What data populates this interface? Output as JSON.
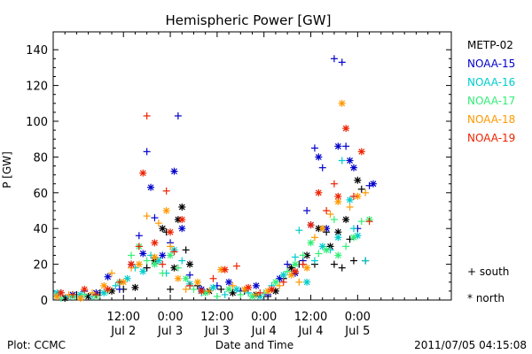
{
  "chart_data": {
    "type": "scatter",
    "title": "Hemispheric Power [GW]",
    "ylabel": "P [GW]",
    "xlabel": "Date and Time",
    "ylim": [
      0,
      150
    ],
    "yticks": [
      0,
      20,
      40,
      60,
      80,
      100,
      120,
      140
    ],
    "x_unit": "hours since 2011/07/01 18:00",
    "xlim": [
      0,
      102
    ],
    "xticks": [
      {
        "x": 18,
        "time": "12:00",
        "date": "Jul 2"
      },
      {
        "x": 30,
        "time": "0:00",
        "date": "Jul 3"
      },
      {
        "x": 42,
        "time": "12:00",
        "date": "Jul 3"
      },
      {
        "x": 54,
        "time": "0:00",
        "date": "Jul 4"
      },
      {
        "x": 66,
        "time": "12:00",
        "date": "Jul 4"
      },
      {
        "x": 78,
        "time": "0:00",
        "date": "Jul 5"
      }
    ],
    "grid": false,
    "legend_position": "right",
    "series": [
      {
        "name": "METP-02",
        "color": "#000000",
        "points": [
          [
            1,
            2,
            "+"
          ],
          [
            3,
            1,
            "*"
          ],
          [
            6,
            3,
            "+"
          ],
          [
            9,
            2,
            "*"
          ],
          [
            12,
            4,
            "+"
          ],
          [
            15,
            5,
            "*"
          ],
          [
            18,
            6,
            "+"
          ],
          [
            21,
            7,
            "*"
          ],
          [
            24,
            18,
            "+"
          ],
          [
            26,
            22,
            "*"
          ],
          [
            28,
            40,
            "*"
          ],
          [
            29,
            38,
            "+"
          ],
          [
            30,
            6,
            "+"
          ],
          [
            31,
            18,
            "*"
          ],
          [
            32,
            45,
            "*"
          ],
          [
            33,
            52,
            "*"
          ],
          [
            34,
            28,
            "+"
          ],
          [
            35,
            20,
            "*"
          ],
          [
            37,
            8,
            "+"
          ],
          [
            40,
            5,
            "*"
          ],
          [
            43,
            6,
            "+"
          ],
          [
            46,
            4,
            "*"
          ],
          [
            49,
            5,
            "+"
          ],
          [
            52,
            3,
            "*"
          ],
          [
            55,
            2,
            "+"
          ],
          [
            57,
            5,
            "*"
          ],
          [
            59,
            12,
            "+"
          ],
          [
            61,
            18,
            "*"
          ],
          [
            63,
            20,
            "+"
          ],
          [
            65,
            25,
            "*"
          ],
          [
            67,
            20,
            "+"
          ],
          [
            68,
            40,
            "*"
          ],
          [
            70,
            38,
            "+"
          ],
          [
            71,
            30,
            "*"
          ],
          [
            72,
            20,
            "+"
          ],
          [
            73,
            38,
            "*"
          ],
          [
            74,
            18,
            "+"
          ],
          [
            75,
            45,
            "*"
          ],
          [
            76,
            34,
            "+"
          ],
          [
            77,
            22,
            "+"
          ],
          [
            78,
            67,
            "*"
          ],
          [
            79,
            62,
            "+"
          ],
          [
            80,
            22,
            "+"
          ]
        ]
      },
      {
        "name": "NOAA-15",
        "color": "#0000cc",
        "points": [
          [
            2,
            4,
            "+"
          ],
          [
            5,
            3,
            "*"
          ],
          [
            8,
            5,
            "+"
          ],
          [
            11,
            4,
            "*"
          ],
          [
            14,
            13,
            "*"
          ],
          [
            17,
            6,
            "+"
          ],
          [
            20,
            20,
            "*"
          ],
          [
            22,
            36,
            "+"
          ],
          [
            23,
            26,
            "*"
          ],
          [
            24,
            83,
            "+"
          ],
          [
            25,
            63,
            "*"
          ],
          [
            26,
            46,
            "+"
          ],
          [
            28,
            25,
            "*"
          ],
          [
            30,
            32,
            "+"
          ],
          [
            31,
            72,
            "*"
          ],
          [
            32,
            103,
            "+"
          ],
          [
            33,
            40,
            "*"
          ],
          [
            35,
            14,
            "+"
          ],
          [
            38,
            6,
            "*"
          ],
          [
            42,
            8,
            "+"
          ],
          [
            45,
            10,
            "*"
          ],
          [
            48,
            5,
            "+"
          ],
          [
            52,
            8,
            "*"
          ],
          [
            55,
            3,
            "+"
          ],
          [
            58,
            12,
            "*"
          ],
          [
            60,
            20,
            "+"
          ],
          [
            62,
            15,
            "*"
          ],
          [
            64,
            22,
            "+"
          ],
          [
            65,
            50,
            "+"
          ],
          [
            66,
            42,
            "*"
          ],
          [
            67,
            85,
            "+"
          ],
          [
            68,
            80,
            "*"
          ],
          [
            69,
            74,
            "+"
          ],
          [
            70,
            40,
            "*"
          ],
          [
            72,
            135,
            "+"
          ],
          [
            73,
            86,
            "*"
          ],
          [
            74,
            133,
            "+"
          ],
          [
            75,
            86,
            "+"
          ],
          [
            76,
            78,
            "*"
          ],
          [
            77,
            74,
            "*"
          ],
          [
            78,
            40,
            "+"
          ],
          [
            81,
            64,
            "+"
          ],
          [
            82,
            65,
            "*"
          ]
        ]
      },
      {
        "name": "NOAA-16",
        "color": "#00cccc",
        "points": [
          [
            1,
            4,
            "*"
          ],
          [
            4,
            2,
            "+"
          ],
          [
            7,
            3,
            "*"
          ],
          [
            10,
            2,
            "+"
          ],
          [
            13,
            4,
            "*"
          ],
          [
            16,
            8,
            "+"
          ],
          [
            19,
            12,
            "*"
          ],
          [
            21,
            18,
            "+"
          ],
          [
            23,
            16,
            "*"
          ],
          [
            25,
            25,
            "+"
          ],
          [
            27,
            22,
            "*"
          ],
          [
            29,
            15,
            "+"
          ],
          [
            31,
            28,
            "*"
          ],
          [
            33,
            22,
            "+"
          ],
          [
            35,
            9,
            "*"
          ],
          [
            38,
            4,
            "+"
          ],
          [
            41,
            7,
            "*"
          ],
          [
            44,
            3,
            "+"
          ],
          [
            47,
            6,
            "*"
          ],
          [
            50,
            4,
            "+"
          ],
          [
            53,
            2,
            "*"
          ],
          [
            56,
            8,
            "+"
          ],
          [
            59,
            14,
            "*"
          ],
          [
            62,
            24,
            "+"
          ],
          [
            63,
            39,
            "+"
          ],
          [
            65,
            10,
            "*"
          ],
          [
            67,
            22,
            "+"
          ],
          [
            69,
            30,
            "*"
          ],
          [
            71,
            28,
            "+"
          ],
          [
            73,
            35,
            "*"
          ],
          [
            74,
            78,
            "+"
          ],
          [
            76,
            56,
            "*"
          ],
          [
            77,
            40,
            "+"
          ],
          [
            78,
            36,
            "*"
          ],
          [
            80,
            22,
            "+"
          ]
        ]
      },
      {
        "name": "NOAA-17",
        "color": "#33ee77",
        "points": [
          [
            2,
            1,
            "+"
          ],
          [
            5,
            2,
            "*"
          ],
          [
            8,
            3,
            "+"
          ],
          [
            11,
            2,
            "*"
          ],
          [
            14,
            5,
            "+"
          ],
          [
            17,
            10,
            "*"
          ],
          [
            20,
            25,
            "+"
          ],
          [
            22,
            30,
            "*"
          ],
          [
            24,
            22,
            "+"
          ],
          [
            26,
            20,
            "*"
          ],
          [
            28,
            15,
            "+"
          ],
          [
            30,
            25,
            "*"
          ],
          [
            32,
            18,
            "+"
          ],
          [
            34,
            12,
            "*"
          ],
          [
            36,
            6,
            "+"
          ],
          [
            39,
            4,
            "*"
          ],
          [
            42,
            2,
            "+"
          ],
          [
            45,
            6,
            "*"
          ],
          [
            48,
            3,
            "+"
          ],
          [
            51,
            2,
            "*"
          ],
          [
            54,
            4,
            "+"
          ],
          [
            57,
            10,
            "*"
          ],
          [
            60,
            16,
            "+"
          ],
          [
            62,
            20,
            "*"
          ],
          [
            64,
            25,
            "+"
          ],
          [
            66,
            32,
            "*"
          ],
          [
            68,
            26,
            "+"
          ],
          [
            70,
            28,
            "*"
          ],
          [
            72,
            45,
            "+"
          ],
          [
            73,
            25,
            "*"
          ],
          [
            75,
            30,
            "+"
          ],
          [
            77,
            35,
            "*"
          ],
          [
            79,
            44,
            "+"
          ],
          [
            81,
            45,
            "*"
          ]
        ]
      },
      {
        "name": "NOAA-18",
        "color": "#ff9900",
        "points": [
          [
            1,
            2,
            "*"
          ],
          [
            4,
            3,
            "+"
          ],
          [
            7,
            1,
            "*"
          ],
          [
            10,
            4,
            "+"
          ],
          [
            13,
            8,
            "*"
          ],
          [
            15,
            15,
            "+"
          ],
          [
            18,
            10,
            "*"
          ],
          [
            20,
            18,
            "+"
          ],
          [
            22,
            20,
            "*"
          ],
          [
            24,
            47,
            "+"
          ],
          [
            26,
            24,
            "*"
          ],
          [
            27,
            43,
            "+"
          ],
          [
            29,
            50,
            "*"
          ],
          [
            30,
            30,
            "+"
          ],
          [
            32,
            12,
            "*"
          ],
          [
            34,
            6,
            "+"
          ],
          [
            37,
            10,
            "*"
          ],
          [
            40,
            5,
            "+"
          ],
          [
            43,
            17,
            "*"
          ],
          [
            46,
            8,
            "+"
          ],
          [
            49,
            6,
            "*"
          ],
          [
            52,
            3,
            "+"
          ],
          [
            55,
            5,
            "*"
          ],
          [
            58,
            8,
            "+"
          ],
          [
            61,
            14,
            "*"
          ],
          [
            63,
            10,
            "+"
          ],
          [
            65,
            18,
            "*"
          ],
          [
            67,
            35,
            "+"
          ],
          [
            69,
            40,
            "*"
          ],
          [
            71,
            48,
            "+"
          ],
          [
            73,
            55,
            "*"
          ],
          [
            74,
            110,
            "*"
          ],
          [
            76,
            52,
            "+"
          ],
          [
            78,
            58,
            "*"
          ],
          [
            80,
            60,
            "+"
          ]
        ]
      },
      {
        "name": "NOAA-19",
        "color": "#ee2200",
        "points": [
          [
            2,
            4,
            "*"
          ],
          [
            5,
            3,
            "+"
          ],
          [
            8,
            6,
            "*"
          ],
          [
            11,
            3,
            "+"
          ],
          [
            14,
            6,
            "*"
          ],
          [
            17,
            10,
            "+"
          ],
          [
            20,
            20,
            "*"
          ],
          [
            22,
            30,
            "+"
          ],
          [
            23,
            71,
            "*"
          ],
          [
            24,
            103,
            "+"
          ],
          [
            26,
            32,
            "*"
          ],
          [
            28,
            20,
            "+"
          ],
          [
            29,
            61,
            "+"
          ],
          [
            30,
            38,
            "*"
          ],
          [
            31,
            27,
            "+"
          ],
          [
            33,
            45,
            "*"
          ],
          [
            35,
            8,
            "+"
          ],
          [
            38,
            5,
            "*"
          ],
          [
            41,
            12,
            "+"
          ],
          [
            44,
            17,
            "*"
          ],
          [
            47,
            19,
            "+"
          ],
          [
            50,
            7,
            "*"
          ],
          [
            53,
            4,
            "+"
          ],
          [
            56,
            6,
            "*"
          ],
          [
            59,
            10,
            "+"
          ],
          [
            62,
            16,
            "*"
          ],
          [
            64,
            20,
            "+"
          ],
          [
            66,
            42,
            "*"
          ],
          [
            68,
            60,
            "*"
          ],
          [
            70,
            50,
            "+"
          ],
          [
            72,
            65,
            "+"
          ],
          [
            73,
            58,
            "*"
          ],
          [
            75,
            96,
            "*"
          ],
          [
            77,
            58,
            "+"
          ],
          [
            79,
            83,
            "*"
          ],
          [
            81,
            44,
            "+"
          ]
        ]
      }
    ],
    "marker_legend": [
      {
        "symbol": "+",
        "label": "south"
      },
      {
        "symbol": "*",
        "label": "north"
      }
    ]
  },
  "footer": {
    "plot_credit": "Plot: CCMC",
    "timestamp": "2011/07/05 04:15:08"
  }
}
